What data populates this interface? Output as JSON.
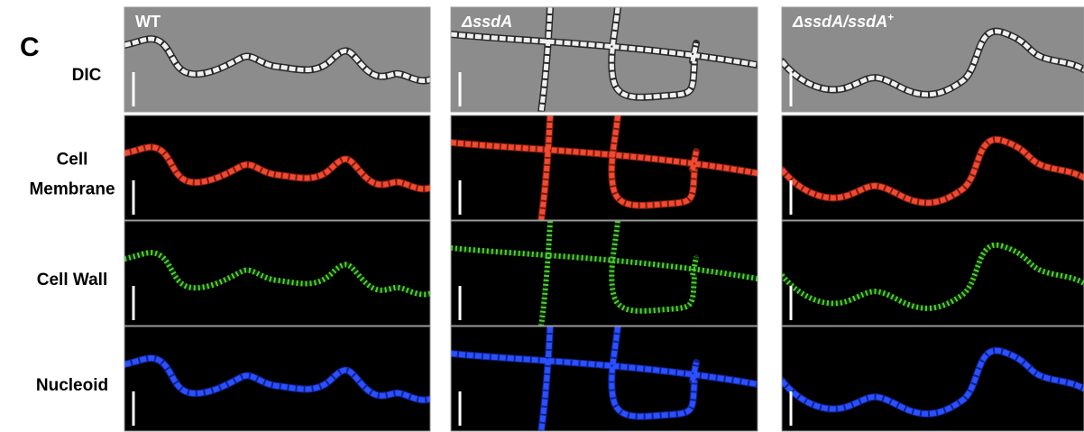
{
  "panel_label": "C",
  "rows": [
    {
      "lines": [
        "DIC"
      ]
    },
    {
      "lines": [
        "Cell",
        "Membrane"
      ]
    },
    {
      "lines": [
        "Cell Wall"
      ]
    },
    {
      "lines": [
        "Nucleoid"
      ]
    }
  ],
  "columns": [
    {
      "label": "WT"
    },
    {
      "label": "ΔssdA"
    },
    {
      "label": "ΔssdA/ssdA",
      "sup": "+"
    }
  ]
}
